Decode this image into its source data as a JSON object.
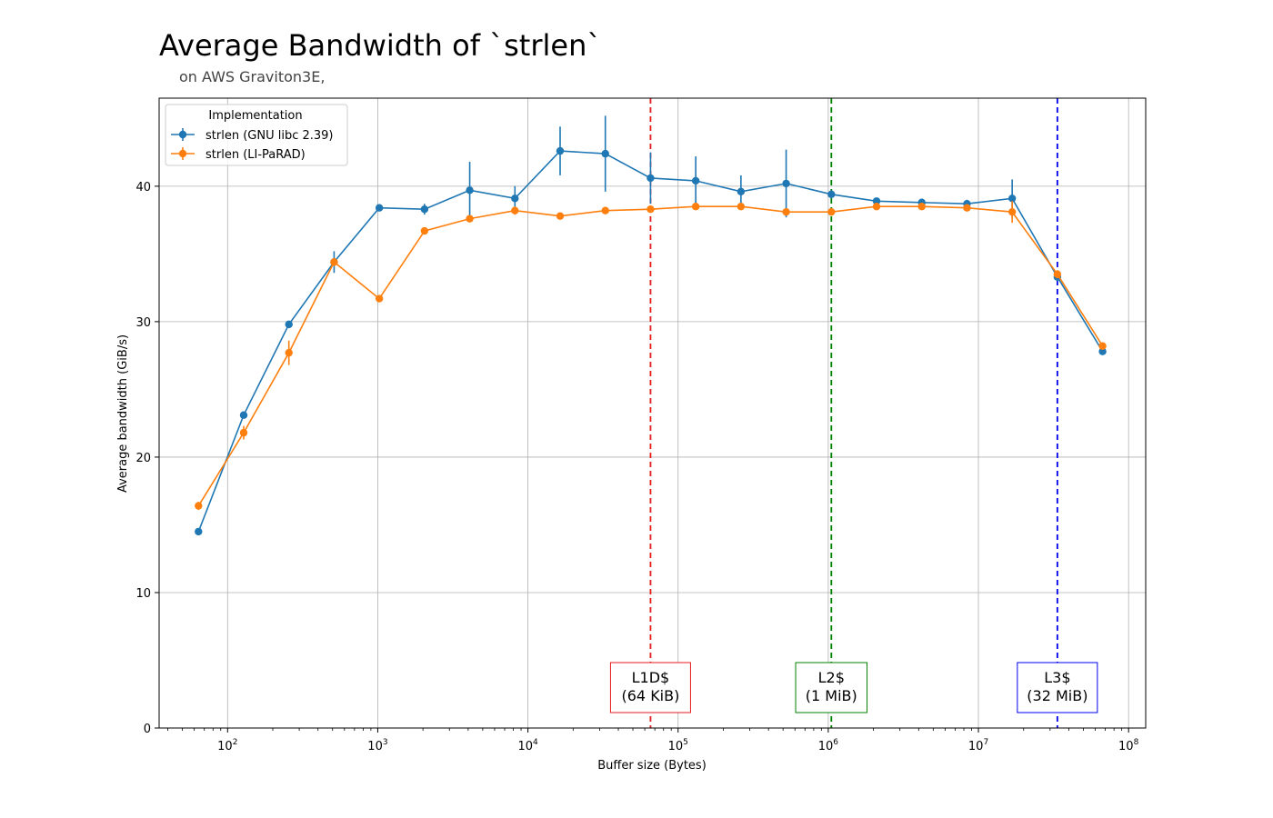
{
  "chart_data": {
    "type": "line",
    "title": "Average Bandwidth of `strlen`",
    "subtitle": "on AWS Graviton3E,",
    "xlabel": "Buffer size (Bytes)",
    "ylabel": "Average bandwidth (GiB/s)",
    "xscale": "log",
    "xlim": [
      35,
      130000000
    ],
    "ylim": [
      0,
      46.5
    ],
    "x_ticks": [
      {
        "value": 100,
        "base": "10",
        "exp": "2"
      },
      {
        "value": 1000,
        "base": "10",
        "exp": "3"
      },
      {
        "value": 10000,
        "base": "10",
        "exp": "4"
      },
      {
        "value": 100000,
        "base": "10",
        "exp": "5"
      },
      {
        "value": 1000000,
        "base": "10",
        "exp": "6"
      },
      {
        "value": 10000000,
        "base": "10",
        "exp": "7"
      },
      {
        "value": 100000000,
        "base": "10",
        "exp": "8"
      }
    ],
    "y_ticks": [
      "0",
      "10",
      "20",
      "30",
      "40"
    ],
    "grid": true,
    "legend": {
      "title": "Implementation",
      "placement": "top-left"
    },
    "x": [
      64,
      128,
      256,
      512,
      1024,
      2048,
      4096,
      8192,
      16384,
      32768,
      65536,
      131072,
      262144,
      524288,
      1048576,
      2097152,
      4194304,
      8388608,
      16777216,
      33554432,
      67108864
    ],
    "series": [
      {
        "name": "strlen (GNU libc 2.39)",
        "color": "#1f77b4",
        "values": [
          14.5,
          23.1,
          29.8,
          34.4,
          38.4,
          38.3,
          39.7,
          39.1,
          42.6,
          42.4,
          40.6,
          40.4,
          39.6,
          40.2,
          39.4,
          38.9,
          38.8,
          38.7,
          39.1,
          33.3,
          27.8
        ],
        "errors": [
          0.2,
          0.2,
          0.2,
          0.8,
          0.1,
          0.4,
          2.1,
          0.9,
          1.8,
          2.8,
          1.9,
          1.8,
          1.2,
          2.5,
          0.3,
          0.2,
          0.2,
          0.3,
          1.4,
          0.3,
          0.2
        ]
      },
      {
        "name": "strlen (LI-PaRAD)",
        "color": "#ff7f0e",
        "values": [
          16.4,
          21.8,
          27.7,
          34.4,
          31.7,
          36.7,
          37.6,
          38.2,
          37.8,
          38.2,
          38.3,
          38.5,
          38.5,
          38.1,
          38.1,
          38.5,
          38.5,
          38.4,
          38.1,
          33.5,
          28.2
        ],
        "errors": [
          0.3,
          0.5,
          0.9,
          0.3,
          0.2,
          0.2,
          0.2,
          0.3,
          0.2,
          0.2,
          0.2,
          0.2,
          0.2,
          0.2,
          0.2,
          0.2,
          0.2,
          0.2,
          0.8,
          0.3,
          0.2
        ]
      }
    ],
    "annotations": [
      {
        "x": 65536,
        "line1": "L1D$",
        "line2": "(64 KiB)",
        "color": "#e41a1c"
      },
      {
        "x": 1048576,
        "line1": "L2$",
        "line2": "(1 MiB)",
        "color": "#008000"
      },
      {
        "x": 33554432,
        "line1": "L3$",
        "line2": "(32 MiB)",
        "color": "#0000ee"
      }
    ]
  }
}
